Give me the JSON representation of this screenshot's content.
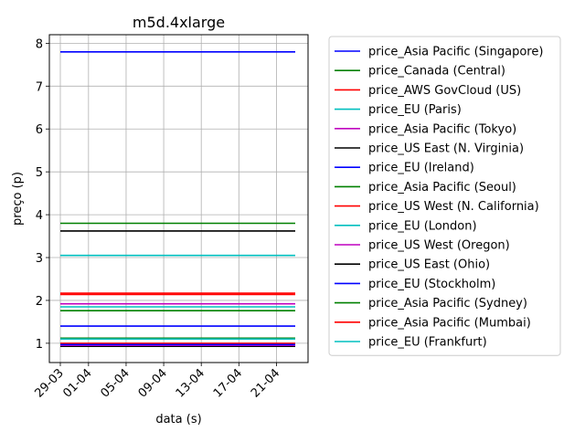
{
  "chart_data": {
    "type": "line",
    "title": "m5d.4xlarge",
    "xlabel": "data (s)",
    "ylabel": "preço (p)",
    "x_ticks": [
      "29-03",
      "01-04",
      "05-04",
      "09-04",
      "13-04",
      "17-04",
      "21-04"
    ],
    "x_range": [
      "2018-03-29",
      "2018-04-23"
    ],
    "ylim": [
      0.55,
      8.2
    ],
    "y_ticks": [
      1,
      2,
      3,
      4,
      5,
      6,
      7,
      8
    ],
    "grid": true,
    "legend_position": "outside-right",
    "series": [
      {
        "name": "price_Asia Pacific (Singapore)",
        "color": "#0000ff",
        "values": [
          7.8,
          7.8
        ]
      },
      {
        "name": "price_Canada (Central)",
        "color": "#008000",
        "values": [
          1.12,
          1.12
        ]
      },
      {
        "name": "price_AWS GovCloud (US)",
        "color": "#ff0000",
        "values": [
          1.0,
          1.0
        ]
      },
      {
        "name": "price_EU (Paris)",
        "color": "#00bfbf",
        "values": [
          1.1,
          1.1
        ]
      },
      {
        "name": "price_Asia Pacific (Tokyo)",
        "color": "#bf00bf",
        "values": [
          1.92,
          1.92
        ]
      },
      {
        "name": "price_US East (N. Virginia)",
        "color": "#000000",
        "values": [
          0.93,
          0.93
        ]
      },
      {
        "name": "price_EU (Ireland)",
        "color": "#0000ff",
        "values": [
          1.4,
          1.4
        ]
      },
      {
        "name": "price_Asia Pacific (Seoul)",
        "color": "#008000",
        "values": [
          3.8,
          3.8
        ]
      },
      {
        "name": "price_US West (N. California)",
        "color": "#ff0000",
        "values": [
          2.14,
          2.14
        ]
      },
      {
        "name": "price_EU (London)",
        "color": "#00bfbf",
        "values": [
          3.05,
          3.05
        ]
      },
      {
        "name": "price_US West (Oregon)",
        "color": "#bf00bf",
        "values": [
          0.95,
          0.95
        ]
      },
      {
        "name": "price_US East (Ohio)",
        "color": "#000000",
        "values": [
          3.62,
          3.62
        ]
      },
      {
        "name": "price_EU (Stockholm)",
        "color": "#0000ff",
        "values": [
          0.97,
          0.97
        ]
      },
      {
        "name": "price_Asia Pacific (Sydney)",
        "color": "#008000",
        "values": [
          1.76,
          1.76
        ]
      },
      {
        "name": "price_Asia Pacific (Mumbai)",
        "color": "#ff0000",
        "values": [
          2.17,
          2.17
        ]
      },
      {
        "name": "price_EU (Frankfurt)",
        "color": "#00bfbf",
        "values": [
          1.85,
          1.85
        ]
      }
    ]
  }
}
